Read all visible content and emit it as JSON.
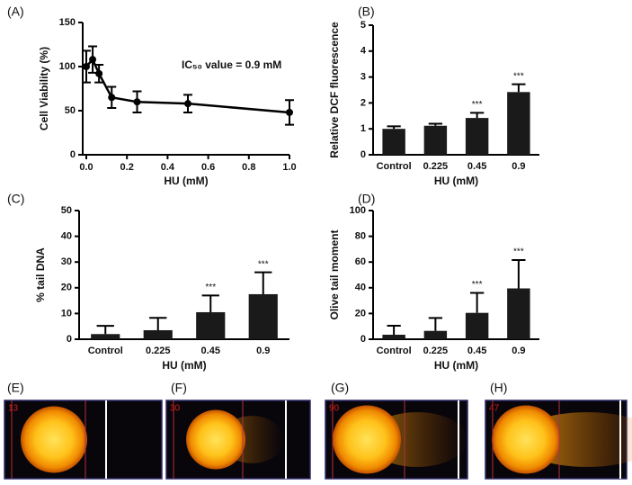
{
  "chart_data": [
    {
      "type": "line",
      "panel_label": "(A)",
      "xlabel": "HU (mM)",
      "ylabel": "Cell Viability (%)",
      "annotation": "IC₅₀ value = 0.9 mM",
      "x": [
        0,
        0.03125,
        0.0625,
        0.125,
        0.25,
        0.5,
        1.0
      ],
      "values": [
        100,
        108,
        92,
        65,
        60,
        58,
        48
      ],
      "errors": [
        18,
        15,
        10,
        12,
        12,
        10,
        14
      ],
      "color": "#000000",
      "xlim": [
        0,
        1
      ],
      "xticks": [
        {
          "value": 0,
          "label": "0.0"
        },
        0.2,
        0.4,
        0.6,
        0.8,
        {
          "value": 1,
          "label": "1.0"
        }
      ],
      "ylim": [
        0,
        150
      ],
      "yticks": [
        0,
        50,
        100,
        150
      ]
    },
    {
      "type": "bar",
      "panel_label": "(B)",
      "xlabel": "HU (mM)",
      "ylabel": "Relative DCF fluorescence",
      "categories": [
        "Control",
        "0.225",
        "0.45",
        "0.9"
      ],
      "values": [
        1.0,
        1.12,
        1.42,
        2.42
      ],
      "errors": [
        0.1,
        0.08,
        0.2,
        0.3
      ],
      "significance": [
        null,
        null,
        "***",
        "***"
      ],
      "color": "#1a1a1a",
      "ylim": [
        0,
        5
      ],
      "yticks": [
        0,
        1,
        2,
        3,
        4,
        5
      ]
    },
    {
      "type": "bar",
      "panel_label": "(C)",
      "xlabel": "HU (mM)",
      "ylabel": "% tail DNA",
      "categories": [
        "Control",
        "0.225",
        "0.45",
        "0.9"
      ],
      "values": [
        2,
        3.5,
        10.5,
        17.5
      ],
      "errors": [
        3.2,
        4.8,
        6.5,
        8.5
      ],
      "significance": [
        null,
        null,
        "***",
        "***"
      ],
      "color": "#1a1a1a",
      "ylim": [
        0,
        50
      ],
      "yticks": [
        0,
        10,
        20,
        30,
        40,
        50
      ]
    },
    {
      "type": "bar",
      "panel_label": "(D)",
      "xlabel": "HU (mM)",
      "ylabel": "Olive tail moment",
      "categories": [
        "Control",
        "0.225",
        "0.45",
        "0.9"
      ],
      "values": [
        3.5,
        6.5,
        20.5,
        39.5
      ],
      "errors": [
        7,
        10,
        15.5,
        22
      ],
      "significance": [
        null,
        null,
        "***",
        "***"
      ],
      "color": "#1a1a1a",
      "ylim": [
        0,
        100
      ],
      "yticks": [
        0,
        20,
        40,
        60,
        80,
        100
      ]
    }
  ],
  "comet_images": [
    {
      "label": "(E)",
      "number": "13"
    },
    {
      "label": "(F)",
      "number": "30"
    },
    {
      "label": "(G)",
      "number": "90"
    },
    {
      "label": "(H)",
      "number": "47"
    }
  ]
}
